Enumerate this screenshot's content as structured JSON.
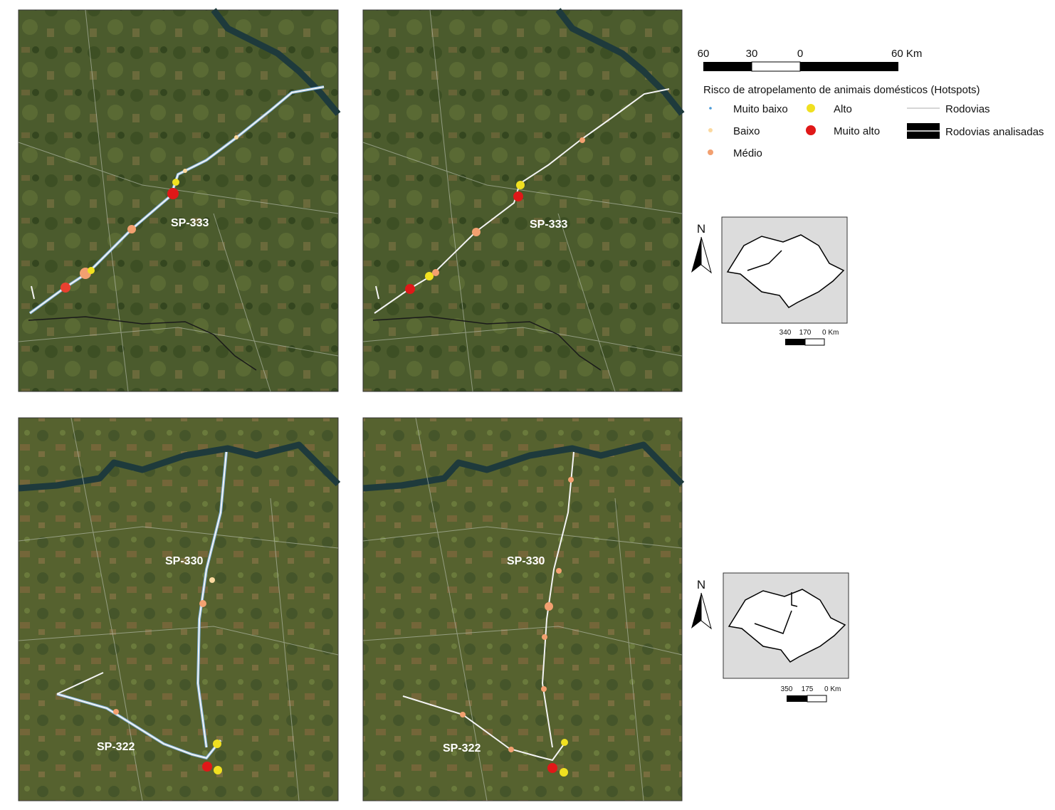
{
  "scale_bar": {
    "labels": [
      "60",
      "30",
      "0",
      "60 Km"
    ]
  },
  "legend": {
    "title": "Risco de atropelamento de animais domésticos  (Hotspots)",
    "items": [
      "Muito baixo",
      "Baixo",
      "Médio",
      "Alto",
      "Muito alto",
      "Rodovias",
      "Rodovias analisadas"
    ]
  },
  "maps": [
    {
      "road_labels": [
        "SP-333"
      ]
    },
    {
      "road_labels": [
        "SP-333"
      ]
    },
    {
      "road_labels": [
        "SP-330",
        "SP-322"
      ]
    },
    {
      "road_labels": [
        "SP-330",
        "SP-322"
      ]
    }
  ],
  "insets": [
    {
      "north": "N",
      "scale_labels": [
        "340",
        "170",
        "0 Km"
      ]
    },
    {
      "north": "N",
      "scale_labels": [
        "350",
        "175",
        "0 Km"
      ]
    }
  ]
}
